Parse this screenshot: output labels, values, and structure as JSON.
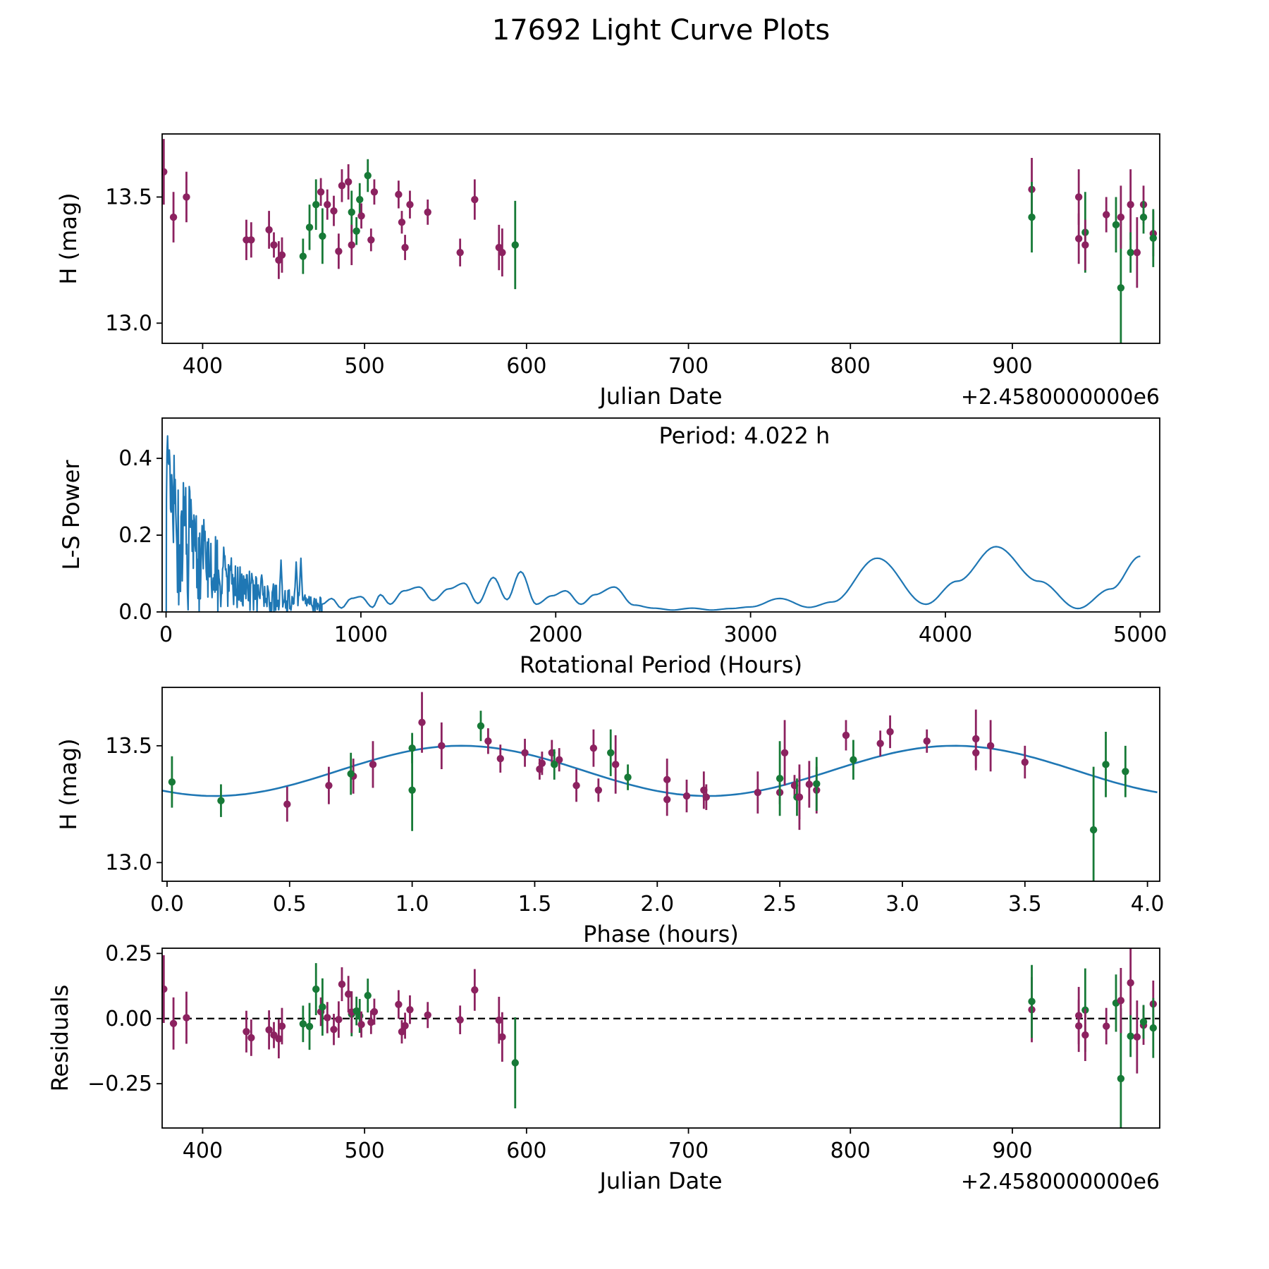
{
  "title": "17692 Light Curve Plots",
  "colors": {
    "maroon_series": "#8C2260",
    "green_series": "#177A37",
    "fit_line": "#1F77B4",
    "periodogram_line": "#1F77B4",
    "zero_line": "#000000",
    "axis": "#000000"
  },
  "observations_fields": [
    "jd_offset",
    "phase_hours",
    "h_mag",
    "h_err",
    "band"
  ],
  "observations": [
    [
      376,
      1.04,
      13.6,
      0.13,
      "p"
    ],
    [
      382,
      0.84,
      13.42,
      0.1,
      "p"
    ],
    [
      390,
      1.12,
      13.5,
      0.1,
      "p"
    ],
    [
      427,
      0.66,
      13.33,
      0.08,
      "p"
    ],
    [
      430,
      1.67,
      13.33,
      0.07,
      "p"
    ],
    [
      441,
      0.76,
      13.37,
      0.075,
      "p"
    ],
    [
      444,
      1.76,
      13.31,
      0.05,
      "p"
    ],
    [
      447,
      0.49,
      13.25,
      0.075,
      "p"
    ],
    [
      449,
      2.04,
      13.27,
      0.07,
      "p"
    ],
    [
      462,
      0.22,
      13.265,
      0.07,
      "g"
    ],
    [
      466,
      0.75,
      13.38,
      0.09,
      "g"
    ],
    [
      470,
      1.81,
      13.47,
      0.1,
      "g"
    ],
    [
      473,
      1.31,
      13.52,
      0.055,
      "p"
    ],
    [
      474,
      0.02,
      13.345,
      0.11,
      "g"
    ],
    [
      477,
      1.46,
      13.47,
      0.06,
      "p"
    ],
    [
      481,
      1.36,
      13.445,
      0.06,
      "p"
    ],
    [
      484,
      2.12,
      13.285,
      0.07,
      "p"
    ],
    [
      486,
      2.77,
      13.545,
      0.065,
      "p"
    ],
    [
      490,
      2.95,
      13.56,
      0.07,
      "p"
    ],
    [
      492,
      2.8,
      13.44,
      0.085,
      "g"
    ],
    [
      492,
      2.19,
      13.31,
      0.08,
      "p"
    ],
    [
      495,
      1.88,
      13.365,
      0.055,
      "g"
    ],
    [
      497,
      1.0,
      13.49,
      0.065,
      "g"
    ],
    [
      498,
      1.53,
      13.425,
      0.05,
      "p"
    ],
    [
      502,
      1.28,
      13.585,
      0.065,
      "g"
    ],
    [
      504,
      2.56,
      13.33,
      0.045,
      "p"
    ],
    [
      506,
      3.1,
      13.52,
      0.05,
      "p"
    ],
    [
      521,
      2.91,
      13.51,
      0.055,
      "p"
    ],
    [
      523,
      1.52,
      13.4,
      0.045,
      "p"
    ],
    [
      525,
      2.5,
      13.3,
      0.05,
      "p"
    ],
    [
      528,
      1.57,
      13.47,
      0.055,
      "p"
    ],
    [
      539,
      1.6,
      13.44,
      0.05,
      "p"
    ],
    [
      559,
      2.2,
      13.28,
      0.055,
      "p"
    ],
    [
      568,
      1.74,
      13.49,
      0.08,
      "p"
    ],
    [
      583,
      2.41,
      13.3,
      0.09,
      "p"
    ],
    [
      585,
      2.58,
      13.28,
      0.095,
      "p"
    ],
    [
      593,
      1.0,
      13.31,
      0.175,
      "g"
    ],
    [
      912,
      3.3,
      13.53,
      0.125,
      "p"
    ],
    [
      912,
      3.83,
      13.42,
      0.14,
      "g"
    ],
    [
      941,
      3.36,
      13.5,
      0.11,
      "p"
    ],
    [
      941,
      2.62,
      13.335,
      0.1,
      "p"
    ],
    [
      945,
      2.5,
      13.36,
      0.16,
      "g"
    ],
    [
      945,
      2.65,
      13.31,
      0.1,
      "p"
    ],
    [
      958,
      3.5,
      13.43,
      0.07,
      "p"
    ],
    [
      964,
      3.91,
      13.39,
      0.11,
      "g"
    ],
    [
      967,
      3.78,
      13.14,
      0.27,
      "g"
    ],
    [
      967,
      1.83,
      13.42,
      0.125,
      "p"
    ],
    [
      973,
      2.52,
      13.47,
      0.14,
      "p"
    ],
    [
      973,
      2.57,
      13.28,
      0.08,
      "g"
    ],
    [
      977,
      2.58,
      13.28,
      0.14,
      "p"
    ],
    [
      981,
      3.3,
      13.47,
      0.075,
      "p"
    ],
    [
      981,
      1.58,
      13.42,
      0.065,
      "g"
    ],
    [
      987,
      2.04,
      13.355,
      0.09,
      "p"
    ],
    [
      987,
      2.65,
      13.337,
      0.115,
      "g"
    ]
  ],
  "chart_data": [
    {
      "id": "light-curve",
      "type": "scatter",
      "xlabel": "Julian Date",
      "ylabel": "H (mag)",
      "x_offset_text": "+2.4580000000e6",
      "xlim": [
        375,
        991
      ],
      "ylim": [
        12.92,
        13.75
      ],
      "xticks": [
        400,
        500,
        600,
        700,
        800,
        900
      ],
      "xtick_labels": [
        "400",
        "500",
        "600",
        "700",
        "800",
        "900"
      ],
      "yticks": [
        13.0,
        13.5
      ],
      "ytick_labels": [
        "13.0",
        "13.5"
      ],
      "points_source": "observations",
      "x_field": "jd_offset",
      "y_field": "h_mag"
    },
    {
      "id": "periodogram",
      "type": "line",
      "xlabel": "Rotational Period (Hours)",
      "ylabel": "L-S Power",
      "annotation": "Period: 4.022 h",
      "xlim": [
        -20,
        5100
      ],
      "ylim": [
        0,
        0.505
      ],
      "xticks": [
        0,
        1000,
        2000,
        3000,
        4000,
        5000
      ],
      "xtick_labels": [
        "0",
        "1000",
        "2000",
        "3000",
        "4000",
        "5000"
      ],
      "yticks": [
        0.0,
        0.2,
        0.4
      ],
      "ytick_labels": [
        "0.0",
        "0.2",
        "0.4"
      ],
      "noise_region": {
        "x_start": 2,
        "x_end": 800,
        "envelope_amplitude": 0.5,
        "envelope_decay": 250,
        "floor": 0.018
      },
      "major_peaks": [
        [
          7,
          0.5
        ],
        [
          18,
          0.46
        ],
        [
          30,
          0.39
        ],
        [
          47,
          0.345
        ],
        [
          95,
          0.3
        ],
        [
          150,
          0.19
        ],
        [
          185,
          0.225
        ],
        [
          200,
          0.21
        ],
        [
          330,
          0.13
        ],
        [
          440,
          0.1
        ],
        [
          490,
          0.105
        ],
        [
          590,
          0.135
        ],
        [
          668,
          0.13
        ],
        [
          692,
          0.14
        ]
      ],
      "smooth_anchors": [
        [
          800,
          0.02
        ],
        [
          850,
          0.035
        ],
        [
          900,
          0.01
        ],
        [
          950,
          0.035
        ],
        [
          1000,
          0.04
        ],
        [
          1060,
          0.012
        ],
        [
          1100,
          0.045
        ],
        [
          1150,
          0.02
        ],
        [
          1220,
          0.055
        ],
        [
          1300,
          0.065
        ],
        [
          1370,
          0.03
        ],
        [
          1450,
          0.06
        ],
        [
          1530,
          0.075
        ],
        [
          1600,
          0.022
        ],
        [
          1680,
          0.09
        ],
        [
          1750,
          0.032
        ],
        [
          1820,
          0.105
        ],
        [
          1900,
          0.02
        ],
        [
          1980,
          0.042
        ],
        [
          2050,
          0.055
        ],
        [
          2130,
          0.02
        ],
        [
          2200,
          0.045
        ],
        [
          2300,
          0.065
        ],
        [
          2400,
          0.018
        ],
        [
          2500,
          0.01
        ],
        [
          2600,
          0.005
        ],
        [
          2700,
          0.01
        ],
        [
          2800,
          0.005
        ],
        [
          2900,
          0.009
        ],
        [
          3000,
          0.013
        ],
        [
          3150,
          0.035
        ],
        [
          3300,
          0.012
        ],
        [
          3420,
          0.026
        ],
        [
          3650,
          0.14
        ],
        [
          3900,
          0.02
        ],
        [
          4060,
          0.08
        ],
        [
          4260,
          0.17
        ],
        [
          4480,
          0.08
        ],
        [
          4680,
          0.009
        ],
        [
          4850,
          0.06
        ],
        [
          5000,
          0.145
        ]
      ]
    },
    {
      "id": "phased-light-curve",
      "type": "scatter+line",
      "xlabel": "Phase (hours)",
      "ylabel": "H (mag)",
      "xlim": [
        -0.02,
        4.05
      ],
      "ylim": [
        12.92,
        13.75
      ],
      "xticks": [
        0.0,
        0.5,
        1.0,
        1.5,
        2.0,
        2.5,
        3.0,
        3.5,
        4.0
      ],
      "xtick_labels": [
        "0.0",
        "0.5",
        "1.0",
        "1.5",
        "2.0",
        "2.5",
        "3.0",
        "3.5",
        "4.0"
      ],
      "yticks": [
        13.0,
        13.5
      ],
      "ytick_labels": [
        "13.0",
        "13.5"
      ],
      "points_source": "observations",
      "x_field": "phase_hours",
      "y_field": "h_mag",
      "fit": {
        "mean": 13.3925,
        "amplitude": 0.1075,
        "period_hours": 2.011,
        "phase_of_maximum": 1.2,
        "rotation_period_hours": 4.022
      }
    },
    {
      "id": "residuals",
      "type": "scatter",
      "xlabel": "Julian Date",
      "ylabel": "Residuals",
      "x_offset_text": "+2.4580000000e6",
      "xlim": [
        375,
        991
      ],
      "ylim": [
        -0.42,
        0.27
      ],
      "xticks": [
        400,
        500,
        600,
        700,
        800,
        900
      ],
      "xtick_labels": [
        "400",
        "500",
        "600",
        "700",
        "800",
        "900"
      ],
      "yticks": [
        0.25,
        0.0,
        -0.25
      ],
      "ytick_labels": [
        "0.25",
        "0.00",
        "−0.25"
      ],
      "points_source": "observations",
      "x_field": "jd_offset",
      "y_field": "h_mag minus fit",
      "zero_line": true
    }
  ]
}
